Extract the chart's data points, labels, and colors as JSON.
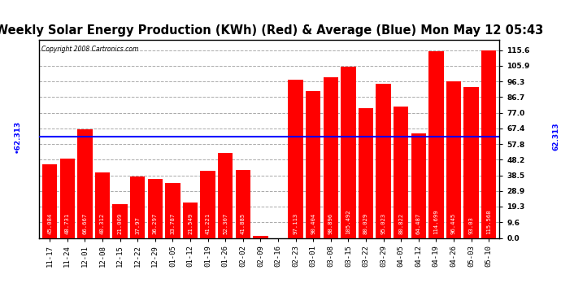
{
  "title": "Weekly Solar Energy Production (KWh) (Red) & Average (Blue) Mon May 12 05:43",
  "copyright": "Copyright 2008 Cartronics.com",
  "categories": [
    "11-17",
    "11-24",
    "12-01",
    "12-08",
    "12-15",
    "12-22",
    "12-29",
    "01-05",
    "01-12",
    "01-19",
    "01-26",
    "02-02",
    "02-09",
    "02-16",
    "02-23",
    "03-01",
    "03-08",
    "03-15",
    "03-22",
    "03-29",
    "04-05",
    "04-12",
    "04-19",
    "04-26",
    "05-03",
    "05-10"
  ],
  "values": [
    45.084,
    48.731,
    66.667,
    40.312,
    21.009,
    37.97,
    36.297,
    33.787,
    21.549,
    41.221,
    52.307,
    41.885,
    1.413,
    0.0,
    97.113,
    90.404,
    98.896,
    105.492,
    80.029,
    95.023,
    80.822,
    64.487,
    114.699,
    96.445,
    93.03,
    115.568
  ],
  "average": 62.313,
  "bar_color": "#FF0000",
  "avg_line_color": "#0000FF",
  "bg_color": "#FFFFFF",
  "plot_bg_color": "#FFFFFF",
  "grid_color": "#AAAAAA",
  "title_fontsize": 10.5,
  "tick_fontsize": 6.5,
  "value_fontsize": 5.2,
  "ylim": [
    0,
    122
  ],
  "yticks": [
    0.0,
    9.6,
    19.3,
    28.9,
    38.5,
    48.2,
    57.8,
    67.4,
    77.0,
    86.7,
    96.3,
    105.9,
    115.6
  ],
  "avg_label": "62.313"
}
